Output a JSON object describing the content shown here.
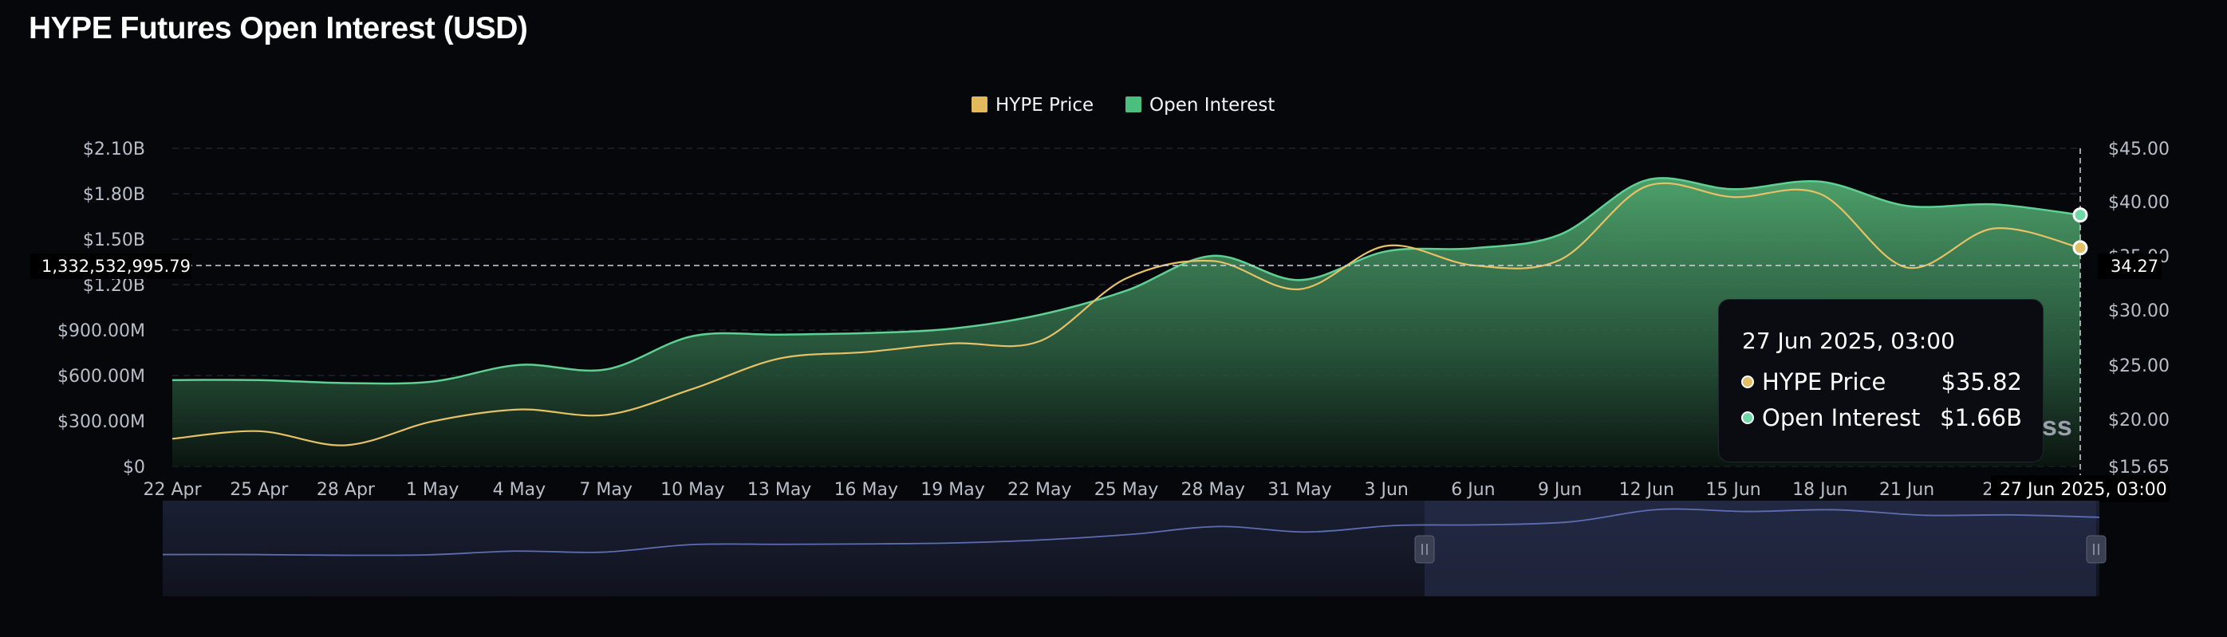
{
  "title": "HYPE Futures Open Interest (USD)",
  "legend": [
    {
      "name": "HYPE Price",
      "color": "#e3b95b"
    },
    {
      "name": "Open Interest",
      "color": "#4cbf7e"
    }
  ],
  "crosshair": {
    "left_value": "1,332,532,995.79",
    "right_value": "34.27",
    "x_label": "27 Jun 2025, 03:00"
  },
  "tooltip": {
    "date": "27 Jun 2025, 03:00",
    "rows": [
      {
        "label": "HYPE Price",
        "value": "$35.82",
        "color": "#e3c067"
      },
      {
        "label": "Open Interest",
        "value": "$1.66B",
        "color": "#6fd6a6"
      }
    ]
  },
  "watermark": "ss",
  "chart_data": {
    "type": "line",
    "x": [
      "22 Apr",
      "25 Apr",
      "28 Apr",
      "1 May",
      "4 May",
      "7 May",
      "10 May",
      "13 May",
      "16 May",
      "19 May",
      "22 May",
      "25 May",
      "28 May",
      "31 May",
      "3 Jun",
      "6 Jun",
      "9 Jun",
      "12 Jun",
      "15 Jun",
      "18 Jun",
      "21 Jun",
      "24",
      "27 Jun"
    ],
    "y_left_ticks": [
      "$0",
      "$300.00M",
      "$600.00M",
      "$900.00M",
      "$1.20B",
      "$1.50B",
      "$1.80B",
      "$2.10B"
    ],
    "y_right_ticks": [
      "$15.65",
      "$20.00",
      "$25.00",
      "$30.00",
      "$35.00",
      "$40.00",
      "$45.00"
    ],
    "y_left_range": [
      0,
      2100000000
    ],
    "y_right_range": [
      15.65,
      45
    ],
    "series": [
      {
        "name": "Open Interest",
        "axis": "left",
        "type": "area",
        "color": "#4cbf7e",
        "values": [
          570000000,
          570000000,
          550000000,
          560000000,
          670000000,
          640000000,
          860000000,
          870000000,
          880000000,
          910000000,
          1000000000,
          1160000000,
          1390000000,
          1230000000,
          1420000000,
          1440000000,
          1530000000,
          1890000000,
          1830000000,
          1880000000,
          1720000000,
          1730000000,
          1660000000
        ]
      },
      {
        "name": "HYPE Price",
        "axis": "right",
        "type": "line",
        "color": "#e3b95b",
        "values": [
          18.2,
          18.9,
          17.6,
          19.8,
          20.9,
          20.4,
          22.8,
          25.6,
          26.2,
          27.0,
          27.2,
          33.0,
          34.6,
          32.0,
          36.0,
          34.2,
          34.7,
          41.5,
          40.5,
          40.8,
          34.0,
          37.6,
          35.82
        ]
      }
    ]
  }
}
